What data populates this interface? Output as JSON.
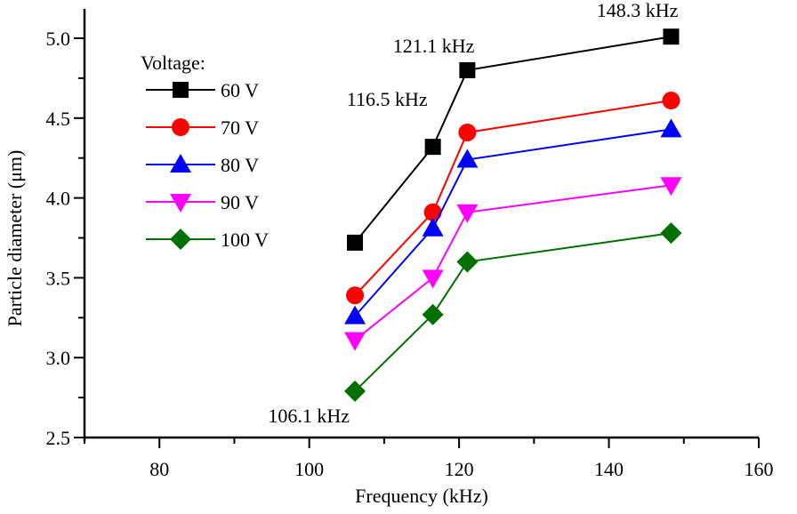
{
  "chart_data": {
    "type": "line",
    "title": "",
    "xlabel": "Frequency (kHz)",
    "ylabel": "Particle diameter (μm)",
    "xlim": [
      70,
      160
    ],
    "ylim": [
      2.5,
      5.25
    ],
    "xticks": [
      80,
      100,
      120,
      140,
      160
    ],
    "xtick_labels": [
      "80",
      "100",
      "120",
      "140",
      "160"
    ],
    "yticks": [
      2.5,
      3.0,
      3.5,
      4.0,
      4.5,
      5.0
    ],
    "ytick_labels": [
      "2.5",
      "3.0",
      "3.5",
      "4.0",
      "4.5",
      "5.0"
    ],
    "grid": false,
    "legend": {
      "title": "Voltage:",
      "placement": "top-left"
    },
    "x": [
      106.1,
      116.5,
      121.1,
      148.3
    ],
    "series": [
      {
        "name": "60 V",
        "color": "#000000",
        "marker": "square",
        "values": [
          3.72,
          4.32,
          4.8,
          5.01
        ]
      },
      {
        "name": "70 V",
        "color": "#ff0000",
        "marker": "circle",
        "values": [
          3.39,
          3.91,
          4.41,
          4.61
        ]
      },
      {
        "name": "80 V",
        "color": "#0000ff",
        "marker": "triangle-up",
        "values": [
          3.26,
          3.81,
          4.24,
          4.43
        ]
      },
      {
        "name": "90 V",
        "color": "#ff00ff",
        "marker": "triangle-down",
        "values": [
          3.11,
          3.5,
          3.91,
          4.08
        ]
      },
      {
        "name": "100 V",
        "color": "#007000",
        "marker": "diamond",
        "values": [
          2.79,
          3.27,
          3.6,
          3.78
        ]
      }
    ],
    "annotations": [
      {
        "text": "106.1 kHz",
        "x": 106.1,
        "y": 2.79,
        "anchor": "below-left"
      },
      {
        "text": "116.5 kHz",
        "x": 116.5,
        "y": 4.32,
        "anchor": "above-left"
      },
      {
        "text": "121.1 kHz",
        "x": 121.1,
        "y": 4.8,
        "anchor": "above-left"
      },
      {
        "text": "148.3 kHz",
        "x": 148.3,
        "y": 5.01,
        "anchor": "above-left"
      }
    ]
  }
}
